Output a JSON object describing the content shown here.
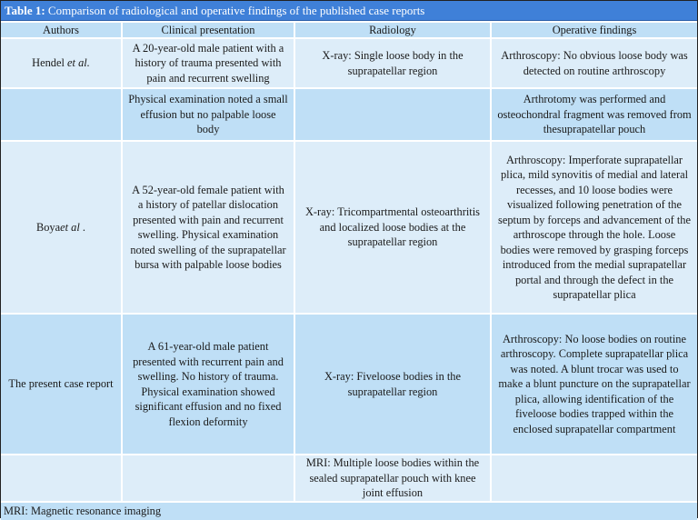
{
  "title": {
    "label": "Table 1:",
    "text": "Comparison of radiological and operative findings of the published case reports"
  },
  "headers": [
    "Authors",
    "Clinical presentation",
    "Radiology",
    "Operative findings"
  ],
  "rows": [
    {
      "author": "Hendel ",
      "author_italic": "et al.",
      "clinical": "A 20-year-old male patient with a history of trauma presented with pain and recurrent swelling",
      "radiology": "X-ray: Single loose body in the suprapatellar region",
      "operative": "Arthroscopy: No obvious loose body was detected on routine arthroscopy"
    },
    {
      "author": "",
      "author_italic": "",
      "clinical": "Physical examination noted a small effusion but no palpable loose body",
      "radiology": "",
      "operative": "Arthrotomy was performed and osteochondral fragment was removed from thesuprapatellar pouch"
    },
    {
      "author": "Boya",
      "author_italic": "et al",
      "author_suffix": " .",
      "clinical": "A 52-year-old female patient with a history of patellar dislocation presented with pain and recurrent swelling. Physical examination noted swelling of the suprapatellar bursa with palpable loose bodies",
      "radiology": "X-ray: Tricompartmental osteoarthritis and localized loose bodies at the suprapatellar region",
      "operative": "Arthroscopy: Imperforate suprapatellar plica, mild synovitis of medial and lateral recesses, and 10 loose bodies were visualized following penetration of the septum by forceps and advancement of the arthroscope through the hole. Loose bodies were removed by grasping forceps introduced from the medial suprapatellar portal and through the defect in the suprapatellar plica"
    },
    {
      "author": "The present case report",
      "author_italic": "",
      "clinical": "A 61-year-old male patient presented with recurrent pain and swelling. No history of trauma. Physical examination showed significant effusion and no fixed flexion deformity",
      "radiology": "X-ray: Fiveloose bodies in the suprapatellar region",
      "operative": "Arthroscopy: No loose bodies on routine arthroscopy. Complete suprapatellar plica was noted. A blunt trocar was used to make a blunt puncture on the suprapatellar plica, allowing identification of the fiveloose bodies trapped within the enclosed suprapatellar compartment"
    },
    {
      "author": "",
      "author_italic": "",
      "clinical": "",
      "radiology": "MRI: Multiple loose bodies within the sealed suprapatellar pouch with knee joint effusion",
      "operative": ""
    }
  ],
  "footnote": "MRI: Magnetic resonance imaging"
}
